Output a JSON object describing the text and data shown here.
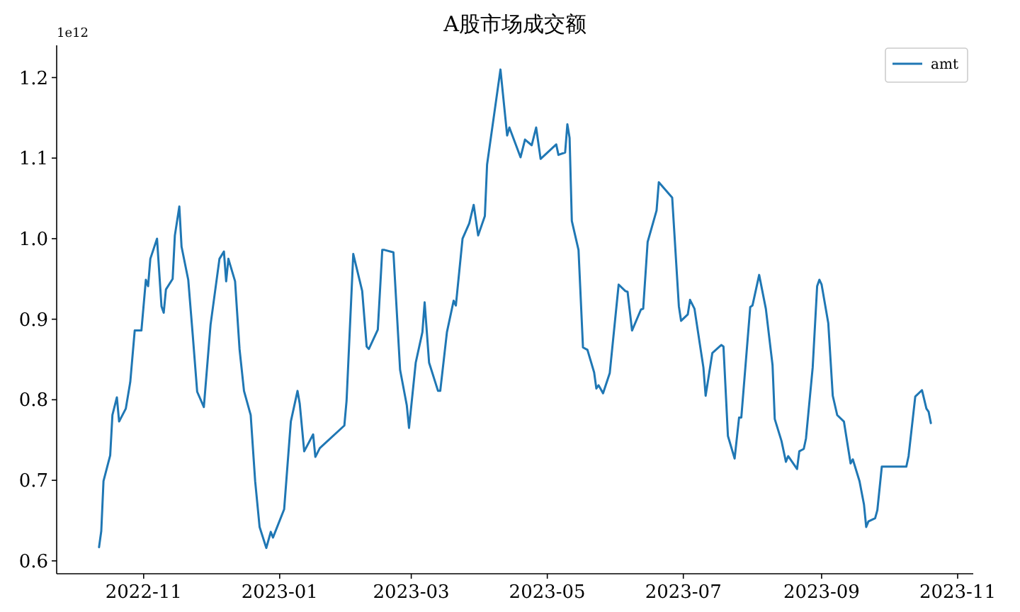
{
  "chart_data": {
    "type": "line",
    "title": "A股市场成交额",
    "annotations": [
      "1e12"
    ],
    "x": [
      "2022-10-12",
      "2022-10-13",
      "2022-10-14",
      "2022-10-17",
      "2022-10-18",
      "2022-10-20",
      "2022-10-21",
      "2022-10-24",
      "2022-10-26",
      "2022-10-28",
      "2022-10-31",
      "2022-11-02",
      "2022-11-03",
      "2022-11-04",
      "2022-11-07",
      "2022-11-09",
      "2022-11-10",
      "2022-11-11",
      "2022-11-14",
      "2022-11-15",
      "2022-11-17",
      "2022-11-18",
      "2022-11-21",
      "2022-11-23",
      "2022-11-25",
      "2022-11-28",
      "2022-11-29",
      "2022-12-01",
      "2022-12-05",
      "2022-12-07",
      "2022-12-08",
      "2022-12-09",
      "2022-12-12",
      "2022-12-14",
      "2022-12-16",
      "2022-12-19",
      "2022-12-21",
      "2022-12-23",
      "2022-12-26",
      "2022-12-28",
      "2022-12-29",
      "2023-01-03",
      "2023-01-06",
      "2023-01-09",
      "2023-01-10",
      "2023-01-12",
      "2023-01-16",
      "2023-01-17",
      "2023-01-19",
      "2023-01-30",
      "2023-01-31",
      "2023-02-03",
      "2023-02-07",
      "2023-02-09",
      "2023-02-10",
      "2023-02-14",
      "2023-02-16",
      "2023-02-17",
      "2023-02-21",
      "2023-02-24",
      "2023-02-27",
      "2023-02-28",
      "2023-03-03",
      "2023-03-06",
      "2023-03-07",
      "2023-03-09",
      "2023-03-13",
      "2023-03-14",
      "2023-03-17",
      "2023-03-20",
      "2023-03-21",
      "2023-03-24",
      "2023-03-27",
      "2023-03-29",
      "2023-03-31",
      "2023-04-03",
      "2023-04-04",
      "2023-04-10",
      "2023-04-13",
      "2023-04-14",
      "2023-04-19",
      "2023-04-21",
      "2023-04-24",
      "2023-04-26",
      "2023-04-28",
      "2023-05-05",
      "2023-05-06",
      "2023-05-09",
      "2023-05-10",
      "2023-05-11",
      "2023-05-12",
      "2023-05-15",
      "2023-05-17",
      "2023-05-19",
      "2023-05-22",
      "2023-05-23",
      "2023-05-24",
      "2023-05-26",
      "2023-05-29",
      "2023-06-02",
      "2023-06-05",
      "2023-06-06",
      "2023-06-08",
      "2023-06-12",
      "2023-06-13",
      "2023-06-15",
      "2023-06-19",
      "2023-06-20",
      "2023-06-26",
      "2023-06-29",
      "2023-06-30",
      "2023-07-03",
      "2023-07-04",
      "2023-07-06",
      "2023-07-10",
      "2023-07-11",
      "2023-07-14",
      "2023-07-18",
      "2023-07-19",
      "2023-07-21",
      "2023-07-24",
      "2023-07-26",
      "2023-07-27",
      "2023-07-31",
      "2023-08-01",
      "2023-08-04",
      "2023-08-07",
      "2023-08-10",
      "2023-08-11",
      "2023-08-14",
      "2023-08-16",
      "2023-08-17",
      "2023-08-21",
      "2023-08-22",
      "2023-08-24",
      "2023-08-25",
      "2023-08-28",
      "2023-08-30",
      "2023-08-31",
      "2023-09-01",
      "2023-09-04",
      "2023-09-06",
      "2023-09-08",
      "2023-09-11",
      "2023-09-14",
      "2023-09-15",
      "2023-09-18",
      "2023-09-20",
      "2023-09-21",
      "2023-09-22",
      "2023-09-25",
      "2023-09-26",
      "2023-09-28",
      "2023-10-09",
      "2023-10-10",
      "2023-10-13",
      "2023-10-16",
      "2023-10-18",
      "2023-10-19",
      "2023-10-20"
    ],
    "series": [
      {
        "name": "amt",
        "color": "#1f77b4",
        "values": [
          0.617,
          0.637,
          0.699,
          0.731,
          0.781,
          0.803,
          0.773,
          0.789,
          0.822,
          0.886,
          0.886,
          0.949,
          0.941,
          0.975,
          1.0,
          0.916,
          0.908,
          0.937,
          0.95,
          1.004,
          1.04,
          0.99,
          0.949,
          0.881,
          0.81,
          0.791,
          0.825,
          0.893,
          0.975,
          0.984,
          0.947,
          0.975,
          0.947,
          0.863,
          0.811,
          0.781,
          0.699,
          0.642,
          0.616,
          0.636,
          0.629,
          0.664,
          0.773,
          0.811,
          0.795,
          0.736,
          0.757,
          0.729,
          0.74,
          0.768,
          0.799,
          0.981,
          0.935,
          0.866,
          0.863,
          0.887,
          0.986,
          0.986,
          0.983,
          0.837,
          0.793,
          0.765,
          0.846,
          0.884,
          0.921,
          0.846,
          0.811,
          0.811,
          0.884,
          0.923,
          0.917,
          1.0,
          1.019,
          1.042,
          1.004,
          1.028,
          1.092,
          1.21,
          1.128,
          1.138,
          1.101,
          1.123,
          1.116,
          1.138,
          1.099,
          1.117,
          1.104,
          1.107,
          1.142,
          1.125,
          1.022,
          0.986,
          0.865,
          0.862,
          0.834,
          0.814,
          0.818,
          0.808,
          0.833,
          0.943,
          0.935,
          0.934,
          0.886,
          0.912,
          0.913,
          0.996,
          1.035,
          1.07,
          1.051,
          0.916,
          0.898,
          0.906,
          0.924,
          0.913,
          0.84,
          0.805,
          0.858,
          0.868,
          0.866,
          0.755,
          0.727,
          0.778,
          0.778,
          0.915,
          0.917,
          0.955,
          0.913,
          0.843,
          0.776,
          0.749,
          0.723,
          0.73,
          0.714,
          0.736,
          0.739,
          0.752,
          0.84,
          0.941,
          0.949,
          0.943,
          0.895,
          0.805,
          0.781,
          0.773,
          0.721,
          0.726,
          0.699,
          0.67,
          0.642,
          0.649,
          0.653,
          0.663,
          0.717,
          0.717,
          0.73,
          0.804,
          0.812,
          0.789,
          0.785,
          0.771
        ]
      }
    ],
    "xlim": [
      "2022-09-23",
      "2023-11-08"
    ],
    "xticks": [
      "2022-11",
      "2023-01",
      "2023-03",
      "2023-05",
      "2023-07",
      "2023-09",
      "2023-11"
    ],
    "ylim": [
      0.584,
      1.24
    ],
    "yticks": [
      0.6,
      0.7,
      0.8,
      0.9,
      {
        "value": 1,
        "label": "1.0"
      },
      1.1,
      1.2
    ],
    "legend": "top right",
    "grid": false,
    "marker": "none",
    "line_style": "solid"
  }
}
